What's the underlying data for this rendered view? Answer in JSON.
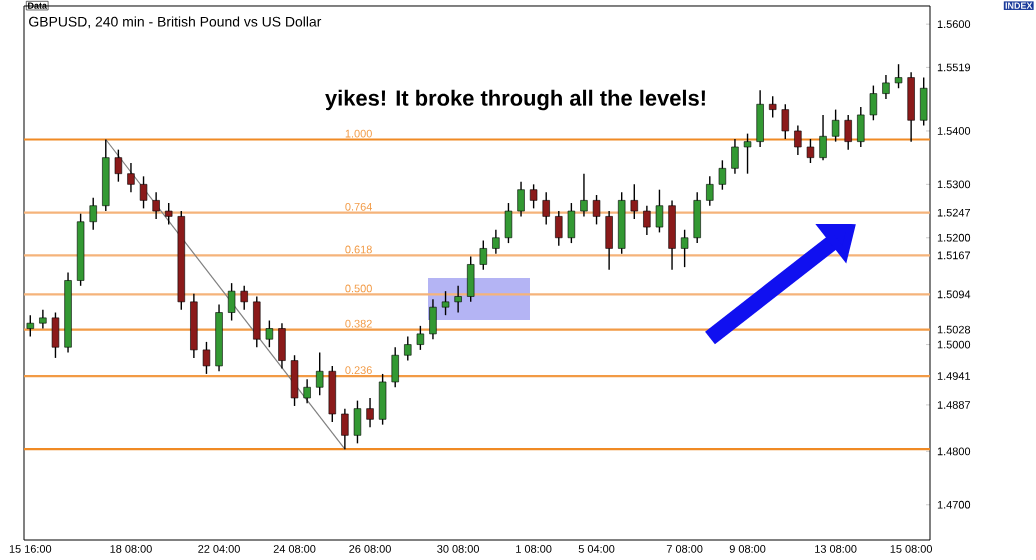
{
  "chart_data": {
    "type": "candlestick",
    "title": "GBPUSD, 240 min - British Pound vs US Dollar",
    "annotations": [
      "Data",
      "INDEX",
      "yikes! It broke through all the levels!",
      {
        "text": "1.000",
        "y": 1.5384
      },
      {
        "text": "0.764",
        "y": 1.5247
      },
      {
        "text": "0.618",
        "y": 1.5167
      },
      {
        "text": "0.500",
        "y": 1.5094
      },
      {
        "text": "0.382",
        "y": 1.5028
      },
      {
        "text": "0.236",
        "y": 1.4941
      }
    ],
    "categories": [
      "15 16:00",
      null,
      null,
      null,
      null,
      null,
      null,
      null,
      "18 08:00",
      null,
      null,
      null,
      null,
      null,
      null,
      "22 04:00",
      null,
      null,
      null,
      null,
      null,
      "24 08:00",
      null,
      null,
      null,
      null,
      null,
      "26 08:00",
      null,
      null,
      null,
      null,
      null,
      null,
      "30 08:00",
      null,
      null,
      null,
      null,
      null,
      "1 08:00",
      null,
      null,
      null,
      null,
      "5 04:00",
      null,
      null,
      null,
      null,
      null,
      null,
      "7 08:00",
      null,
      null,
      null,
      null,
      "9 08:00",
      null,
      null,
      null,
      null,
      null,
      null,
      "13 08:00",
      null,
      null,
      null,
      null,
      null,
      "15 08:00",
      null
    ],
    "ohlc": [
      [
        1.503,
        1.5055,
        1.5015,
        1.504
      ],
      [
        1.504,
        1.5065,
        1.503,
        1.505
      ],
      [
        1.505,
        1.506,
        1.4975,
        1.4995
      ],
      [
        1.4995,
        1.5135,
        1.4985,
        1.512
      ],
      [
        1.512,
        1.5245,
        1.511,
        1.523
      ],
      [
        1.523,
        1.5275,
        1.5215,
        1.526
      ],
      [
        1.526,
        1.5384,
        1.525,
        1.535
      ],
      [
        1.535,
        1.5365,
        1.5305,
        1.532
      ],
      [
        1.532,
        1.534,
        1.5285,
        1.53
      ],
      [
        1.53,
        1.5315,
        1.5255,
        1.527
      ],
      [
        1.527,
        1.5285,
        1.5235,
        1.525
      ],
      [
        1.525,
        1.5265,
        1.5225,
        1.524
      ],
      [
        1.524,
        1.525,
        1.5065,
        1.508
      ],
      [
        1.508,
        1.5095,
        1.4975,
        1.499
      ],
      [
        1.499,
        1.5005,
        1.4945,
        1.496
      ],
      [
        1.496,
        1.5075,
        1.495,
        1.506
      ],
      [
        1.506,
        1.5115,
        1.5045,
        1.51
      ],
      [
        1.51,
        1.511,
        1.5065,
        1.508
      ],
      [
        1.508,
        1.509,
        1.4995,
        1.501
      ],
      [
        1.501,
        1.5045,
        1.4995,
        1.503
      ],
      [
        1.503,
        1.504,
        1.4955,
        1.497
      ],
      [
        1.497,
        1.498,
        1.4885,
        1.49
      ],
      [
        1.49,
        1.4935,
        1.489,
        1.492
      ],
      [
        1.492,
        1.4985,
        1.4905,
        1.495
      ],
      [
        1.495,
        1.496,
        1.4855,
        1.487
      ],
      [
        1.487,
        1.488,
        1.4804,
        1.483
      ],
      [
        1.483,
        1.4895,
        1.4815,
        1.488
      ],
      [
        1.488,
        1.49,
        1.4845,
        1.486
      ],
      [
        1.486,
        1.4945,
        1.485,
        1.493
      ],
      [
        1.493,
        1.4995,
        1.492,
        1.498
      ],
      [
        1.498,
        1.5015,
        1.497,
        1.5
      ],
      [
        1.5,
        1.5035,
        1.499,
        1.502
      ],
      [
        1.502,
        1.5085,
        1.501,
        1.507
      ],
      [
        1.507,
        1.51,
        1.5055,
        1.508
      ],
      [
        1.508,
        1.511,
        1.506,
        1.509
      ],
      [
        1.509,
        1.5165,
        1.508,
        1.515
      ],
      [
        1.515,
        1.5195,
        1.514,
        1.518
      ],
      [
        1.518,
        1.5215,
        1.517,
        1.52
      ],
      [
        1.52,
        1.5265,
        1.519,
        1.525
      ],
      [
        1.525,
        1.5305,
        1.524,
        1.529
      ],
      [
        1.529,
        1.53,
        1.5255,
        1.527
      ],
      [
        1.527,
        1.5285,
        1.5225,
        1.524
      ],
      [
        1.524,
        1.525,
        1.5185,
        1.52
      ],
      [
        1.52,
        1.5265,
        1.519,
        1.525
      ],
      [
        1.525,
        1.532,
        1.524,
        1.527
      ],
      [
        1.527,
        1.528,
        1.5225,
        1.524
      ],
      [
        1.524,
        1.525,
        1.514,
        1.518
      ],
      [
        1.518,
        1.5285,
        1.517,
        1.527
      ],
      [
        1.527,
        1.53,
        1.5235,
        1.525
      ],
      [
        1.525,
        1.526,
        1.5205,
        1.522
      ],
      [
        1.522,
        1.529,
        1.521,
        1.526
      ],
      [
        1.526,
        1.527,
        1.514,
        1.518
      ],
      [
        1.518,
        1.5215,
        1.5145,
        1.52
      ],
      [
        1.52,
        1.5285,
        1.519,
        1.527
      ],
      [
        1.527,
        1.5315,
        1.526,
        1.53
      ],
      [
        1.53,
        1.5345,
        1.529,
        1.533
      ],
      [
        1.533,
        1.5385,
        1.532,
        1.537
      ],
      [
        1.537,
        1.5395,
        1.532,
        1.538
      ],
      [
        1.538,
        1.5476,
        1.537,
        1.545
      ],
      [
        1.545,
        1.5465,
        1.5425,
        1.544
      ],
      [
        1.544,
        1.545,
        1.5385,
        1.54
      ],
      [
        1.54,
        1.541,
        1.5355,
        1.537
      ],
      [
        1.537,
        1.5385,
        1.534,
        1.535
      ],
      [
        1.535,
        1.543,
        1.5345,
        1.539
      ],
      [
        1.539,
        1.544,
        1.538,
        1.542
      ],
      [
        1.542,
        1.543,
        1.5365,
        1.538
      ],
      [
        1.538,
        1.5445,
        1.537,
        1.543
      ],
      [
        1.543,
        1.5485,
        1.542,
        1.547
      ],
      [
        1.547,
        1.5505,
        1.546,
        1.549
      ],
      [
        1.549,
        1.5525,
        1.548,
        1.55
      ],
      [
        1.55,
        1.551,
        1.538,
        1.542
      ],
      [
        1.542,
        1.55,
        1.541,
        1.548
      ]
    ],
    "colors": [
      "#339933",
      "#339933",
      "#8b1a1a",
      "#339933",
      "#339933",
      "#339933",
      "#339933",
      "#8b1a1a",
      "#8b1a1a",
      "#8b1a1a",
      "#8b1a1a",
      "#8b1a1a",
      "#8b1a1a",
      "#8b1a1a",
      "#8b1a1a",
      "#339933",
      "#339933",
      "#8b1a1a",
      "#8b1a1a",
      "#339933",
      "#8b1a1a",
      "#8b1a1a",
      "#339933",
      "#339933",
      "#8b1a1a",
      "#8b1a1a",
      "#339933",
      "#8b1a1a",
      "#339933",
      "#339933",
      "#339933",
      "#339933",
      "#339933",
      "#339933",
      "#339933",
      "#339933",
      "#339933",
      "#339933",
      "#339933",
      "#339933",
      "#8b1a1a",
      "#8b1a1a",
      "#8b1a1a",
      "#339933",
      "#339933",
      "#8b1a1a",
      "#8b1a1a",
      "#339933",
      "#8b1a1a",
      "#8b1a1a",
      "#339933",
      "#8b1a1a",
      "#339933",
      "#339933",
      "#339933",
      "#339933",
      "#339933",
      "#339933",
      "#339933",
      "#8b1a1a",
      "#8b1a1a",
      "#8b1a1a",
      "#8b1a1a",
      "#339933",
      "#339933",
      "#8b1a1a",
      "#339933",
      "#339933",
      "#339933",
      "#339933",
      "#8b1a1a",
      "#339933"
    ],
    "series": [
      {
        "type": "line",
        "color": "#808080",
        "values": [
          null,
          null,
          null,
          null,
          null,
          null,
          1.5384,
          null,
          null,
          null,
          null,
          null,
          null,
          null,
          null,
          null,
          null,
          null,
          null,
          null,
          null,
          null,
          null,
          null,
          null,
          1.4804,
          null,
          null,
          null,
          null,
          null,
          null,
          null,
          null,
          null,
          null,
          null,
          null,
          null,
          null,
          null,
          null,
          null,
          null,
          null,
          null,
          null,
          null,
          null,
          null,
          null,
          null,
          null,
          null,
          null,
          null,
          null,
          null,
          null,
          null,
          null,
          null,
          null,
          null,
          null,
          null,
          null,
          null,
          null,
          null,
          null,
          null
        ]
      }
    ],
    "ylim": [
      1.4634,
      1.5634
    ],
    "yticks": [
      {
        "value": 1.56,
        "label": "1.5600"
      },
      {
        "value": 1.5519,
        "label": "1.5519"
      },
      {
        "value": 1.54,
        "label": "1.5400"
      },
      {
        "value": 1.53,
        "label": "1.5300"
      },
      {
        "value": 1.5247,
        "label": "1.5247"
      },
      {
        "value": 1.52,
        "label": "1.5200"
      },
      {
        "value": 1.5167,
        "label": "1.5167"
      },
      {
        "value": 1.5094,
        "label": "1.5094"
      },
      {
        "value": 1.5028,
        "label": "1.5028"
      },
      {
        "value": 1.5,
        "label": "1.5000"
      },
      {
        "value": 1.4941,
        "label": "1.4941"
      },
      {
        "value": 1.4887,
        "label": "1.4887"
      },
      {
        "value": 1.48,
        "label": "1.4800"
      },
      {
        "value": 1.47,
        "label": "1.4700"
      }
    ],
    "ref_lines": [
      {
        "axis": "y",
        "value": 1.5384,
        "color": "#f08a24"
      },
      {
        "axis": "y",
        "value": 1.5247,
        "color": "#f5b37a"
      },
      {
        "axis": "y",
        "value": 1.5167,
        "color": "#f5b37a"
      },
      {
        "axis": "y",
        "value": 1.5094,
        "color": "#f5b37a"
      },
      {
        "axis": "y",
        "value": 1.5028,
        "color": "#f29a45"
      },
      {
        "axis": "y",
        "value": 1.4941,
        "color": "#f29a45"
      },
      {
        "axis": "y",
        "value": 1.4804,
        "color": "#f08a24"
      }
    ]
  }
}
